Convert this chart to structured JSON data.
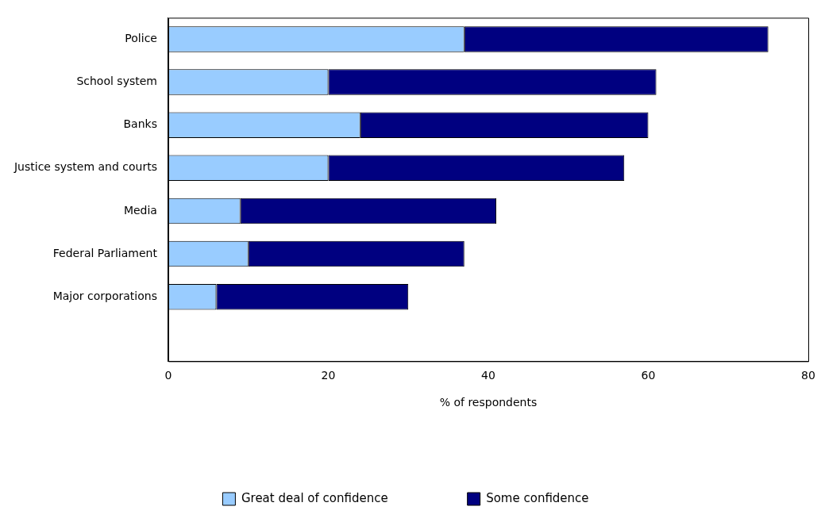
{
  "chart_data": {
    "type": "bar",
    "orientation": "horizontal",
    "stacked": true,
    "categories": [
      "Police",
      "School system",
      "Banks",
      "Justice system and courts",
      "Media",
      "Federal Parliament",
      "Major corporations",
      null
    ],
    "series": [
      {
        "name": "Great deal of confidence",
        "color": "#99ccff",
        "values": [
          37,
          20,
          24,
          20,
          9,
          10,
          6,
          null
        ]
      },
      {
        "name": "Some confidence",
        "color": "#000080",
        "values": [
          38,
          41,
          36,
          37,
          32,
          27,
          24,
          null
        ]
      }
    ],
    "xlabel": "% of respondents",
    "xlim": [
      0,
      80
    ],
    "xticks": [
      0,
      20,
      40,
      60,
      80
    ],
    "grid": false,
    "legend": "bottom"
  }
}
